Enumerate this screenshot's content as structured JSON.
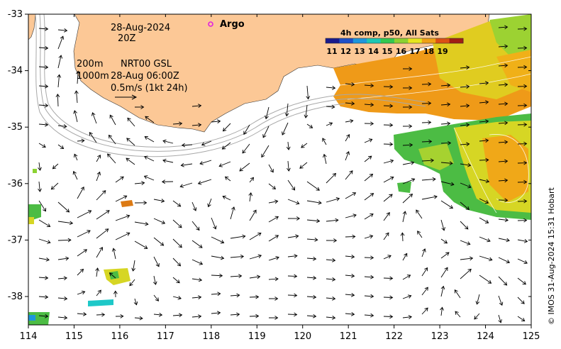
{
  "annotations": {
    "date": "28-Aug-2024",
    "hour": "20Z",
    "contour1": "200m",
    "contour2": "1000m",
    "source": "NRT00 GSL",
    "source_time": "28-Aug 06:00Z",
    "scale": "0.5m/s (1kt 24h)"
  },
  "legend": {
    "argo_label": "Argo",
    "argo_color": "#e020e0"
  },
  "colorbar": {
    "title": "4h comp, p50, All Sats",
    "labels": [
      "11",
      "12",
      "13",
      "14",
      "15",
      "16",
      "17",
      "18",
      "19"
    ],
    "colors": [
      "#1a1a8c",
      "#1e50c8",
      "#1e96dc",
      "#1ec8b4",
      "#32c850",
      "#8cd232",
      "#e6e61e",
      "#f0a014",
      "#dc5014",
      "#a01e14"
    ]
  },
  "axes": {
    "x_ticks": [
      "114",
      "115",
      "116",
      "117",
      "118",
      "119",
      "120",
      "121",
      "122",
      "123",
      "124",
      "125"
    ],
    "y_ticks": [
      "-33",
      "-34",
      "-35",
      "-36",
      "-37",
      "-38"
    ]
  },
  "credit": "© IMOS 31-Aug-2024 15:31 Hobart",
  "colors": {
    "land": "#fcc896",
    "ocean": "#ffffff",
    "bathy": "#b0b0b0"
  }
}
